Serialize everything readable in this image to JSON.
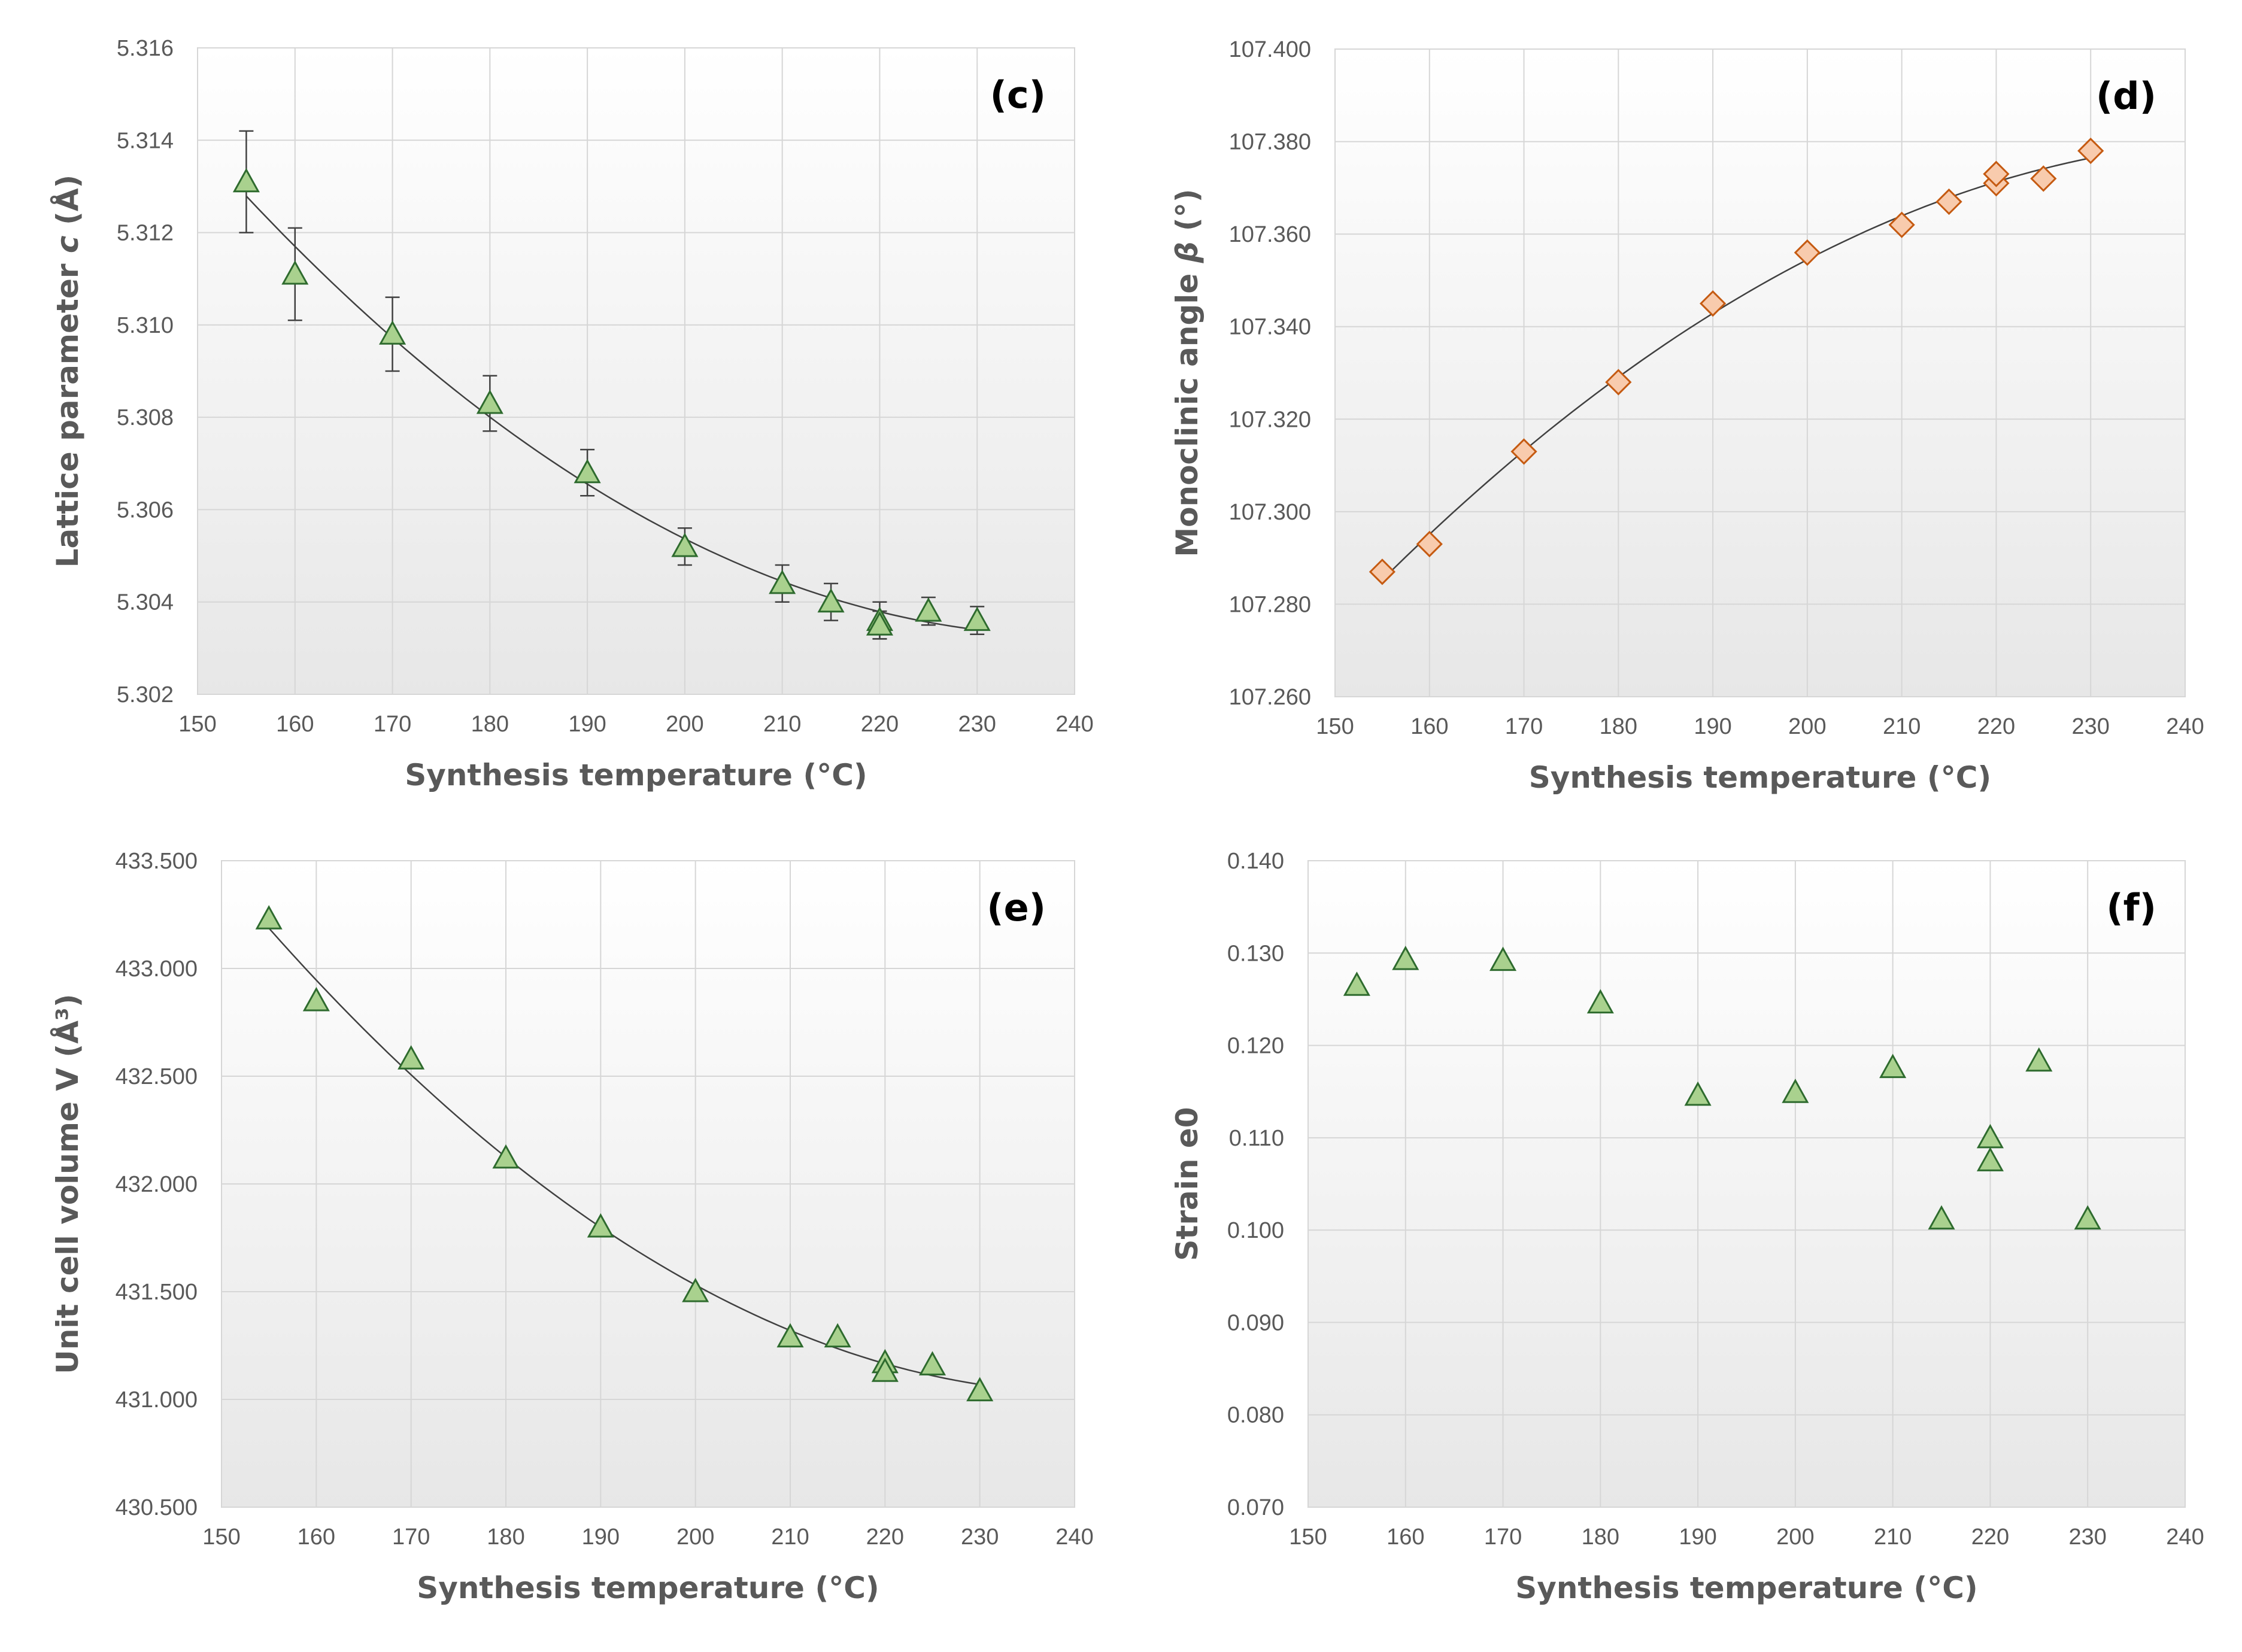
{
  "chart_data": [
    {
      "type": "scatter",
      "panel_label": "(c)",
      "xlabel": "Synthesis temperature (°C)",
      "ylabel_parts": [
        "Lattice parameter ",
        "c",
        " (Å)"
      ],
      "xlim": [
        150,
        240
      ],
      "ylim": [
        5.302,
        5.316
      ],
      "xticks": [
        "150",
        "160",
        "170",
        "180",
        "190",
        "200",
        "210",
        "220",
        "230",
        "240"
      ],
      "yticks": [
        "5.302",
        "5.304",
        "5.306",
        "5.308",
        "5.310",
        "5.312",
        "5.314",
        "5.316"
      ],
      "marker": "triangle",
      "marker_fill": "#a9d18e",
      "marker_stroke": "#2e6b2e",
      "trendline": true,
      "error_bars": true,
      "points": [
        {
          "x": 155,
          "y": 5.3131,
          "err": 0.0011
        },
        {
          "x": 160,
          "y": 5.3111,
          "err": 0.001
        },
        {
          "x": 170,
          "y": 5.3098,
          "err": 0.0008
        },
        {
          "x": 180,
          "y": 5.3083,
          "err": 0.0006
        },
        {
          "x": 190,
          "y": 5.3068,
          "err": 0.0005
        },
        {
          "x": 200,
          "y": 5.3052,
          "err": 0.0004
        },
        {
          "x": 210,
          "y": 5.3044,
          "err": 0.0004
        },
        {
          "x": 215,
          "y": 5.304,
          "err": 0.0004
        },
        {
          "x": 220,
          "y": 5.3036,
          "err": 0.0004
        },
        {
          "x": 220,
          "y": 5.3035,
          "err": 0.0003
        },
        {
          "x": 225,
          "y": 5.3038,
          "err": 0.0003
        },
        {
          "x": 230,
          "y": 5.3036,
          "err": 0.0003
        }
      ]
    },
    {
      "type": "scatter",
      "panel_label": "(d)",
      "xlabel": "Synthesis temperature (°C)",
      "ylabel_parts": [
        "Monoclinic angle  ",
        "β",
        " (°)"
      ],
      "xlim": [
        150,
        240
      ],
      "ylim": [
        107.26,
        107.4
      ],
      "xticks": [
        "150",
        "160",
        "170",
        "180",
        "190",
        "200",
        "210",
        "220",
        "230",
        "240"
      ],
      "yticks": [
        "107.260",
        "107.280",
        "107.300",
        "107.320",
        "107.340",
        "107.360",
        "107.380",
        "107.400"
      ],
      "marker": "diamond",
      "marker_fill": "#f8cbad",
      "marker_stroke": "#c55a11",
      "trendline": true,
      "error_bars": false,
      "points": [
        {
          "x": 155,
          "y": 107.287
        },
        {
          "x": 160,
          "y": 107.293
        },
        {
          "x": 170,
          "y": 107.313
        },
        {
          "x": 180,
          "y": 107.328
        },
        {
          "x": 190,
          "y": 107.345
        },
        {
          "x": 200,
          "y": 107.356
        },
        {
          "x": 210,
          "y": 107.362
        },
        {
          "x": 215,
          "y": 107.367
        },
        {
          "x": 220,
          "y": 107.371
        },
        {
          "x": 220,
          "y": 107.373
        },
        {
          "x": 225,
          "y": 107.372
        },
        {
          "x": 230,
          "y": 107.378
        }
      ]
    },
    {
      "type": "scatter",
      "panel_label": "(e)",
      "xlabel": "Synthesis temperature (°C)",
      "ylabel_parts": [
        "Unit cell volume V (Å³)"
      ],
      "xlim": [
        150,
        240
      ],
      "ylim": [
        430.5,
        433.5
      ],
      "xticks": [
        "150",
        "160",
        "170",
        "180",
        "190",
        "200",
        "210",
        "220",
        "230",
        "240"
      ],
      "yticks": [
        "430.500",
        "431.000",
        "431.500",
        "432.000",
        "432.500",
        "433.000",
        "433.500"
      ],
      "marker": "triangle",
      "marker_fill": "#a9d18e",
      "marker_stroke": "#2e6b2e",
      "trendline": true,
      "error_bars": false,
      "points": [
        {
          "x": 155,
          "y": 433.23
        },
        {
          "x": 160,
          "y": 432.85
        },
        {
          "x": 170,
          "y": 432.58
        },
        {
          "x": 180,
          "y": 432.12
        },
        {
          "x": 190,
          "y": 431.8
        },
        {
          "x": 200,
          "y": 431.5
        },
        {
          "x": 210,
          "y": 431.29
        },
        {
          "x": 215,
          "y": 431.29
        },
        {
          "x": 220,
          "y": 431.17
        },
        {
          "x": 220,
          "y": 431.13
        },
        {
          "x": 225,
          "y": 431.16
        },
        {
          "x": 230,
          "y": 431.04
        }
      ]
    },
    {
      "type": "scatter",
      "panel_label": "(f)",
      "xlabel": "Synthesis temperature (°C)",
      "ylabel_parts": [
        "Strain e0"
      ],
      "xlim": [
        150,
        240
      ],
      "ylim": [
        0.07,
        0.14
      ],
      "xticks": [
        "150",
        "160",
        "170",
        "180",
        "190",
        "200",
        "210",
        "220",
        "230",
        "240"
      ],
      "yticks": [
        "0.070",
        "0.080",
        "0.090",
        "0.100",
        "0.110",
        "0.120",
        "0.130",
        "0.140"
      ],
      "marker": "triangle",
      "marker_fill": "#a9d18e",
      "marker_stroke": "#2e6b2e",
      "trendline": false,
      "error_bars": false,
      "points": [
        {
          "x": 155,
          "y": 0.1265
        },
        {
          "x": 160,
          "y": 0.1293
        },
        {
          "x": 170,
          "y": 0.1292
        },
        {
          "x": 180,
          "y": 0.1246
        },
        {
          "x": 190,
          "y": 0.1146
        },
        {
          "x": 200,
          "y": 0.1149
        },
        {
          "x": 210,
          "y": 0.1176
        },
        {
          "x": 215,
          "y": 0.1012
        },
        {
          "x": 220,
          "y": 0.11
        },
        {
          "x": 220,
          "y": 0.1075
        },
        {
          "x": 225,
          "y": 0.1183
        },
        {
          "x": 230,
          "y": 0.1012
        }
      ]
    }
  ]
}
